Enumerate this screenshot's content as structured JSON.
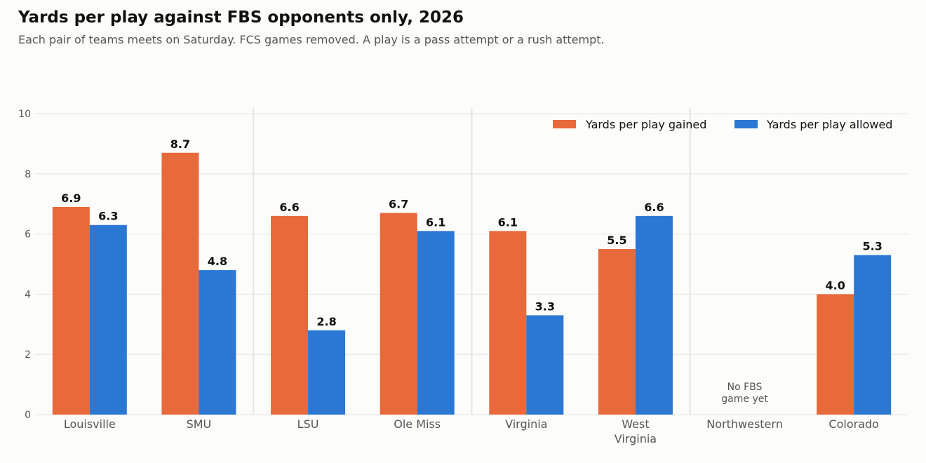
{
  "title": "Yards per play against FBS opponents only, 2026",
  "subtitle": "Each pair of teams meets on Saturday. FCS games removed. A play is a pass attempt or a rush attempt.",
  "colors": {
    "gained": "#e8693a",
    "allowed": "#2a78d4"
  },
  "chart_data": {
    "type": "bar",
    "categories": [
      "Louisville",
      "SMU",
      "LSU",
      "Ole Miss",
      "Virginia",
      "West Virginia",
      "Northwestern",
      "Colorado"
    ],
    "category_lines": [
      [
        "Louisville"
      ],
      [
        "SMU"
      ],
      [
        "LSU"
      ],
      [
        "Ole Miss"
      ],
      [
        "Virginia"
      ],
      [
        "West",
        "Virginia"
      ],
      [
        "Northwestern"
      ],
      [
        "Colorado"
      ]
    ],
    "series": [
      {
        "name": "Yards per play gained",
        "values": [
          6.9,
          8.7,
          6.6,
          6.7,
          6.1,
          5.5,
          null,
          4.0
        ]
      },
      {
        "name": "Yards per play allowed",
        "values": [
          6.3,
          4.8,
          2.8,
          6.1,
          3.3,
          6.6,
          null,
          5.3
        ]
      }
    ],
    "no_data_label": [
      "No FBS",
      "game yet"
    ],
    "ylim": [
      0,
      10
    ],
    "yticks": [
      0,
      2,
      4,
      6,
      8,
      10
    ],
    "grid": true,
    "legend": "top-right",
    "xlabel": "",
    "ylabel": ""
  }
}
